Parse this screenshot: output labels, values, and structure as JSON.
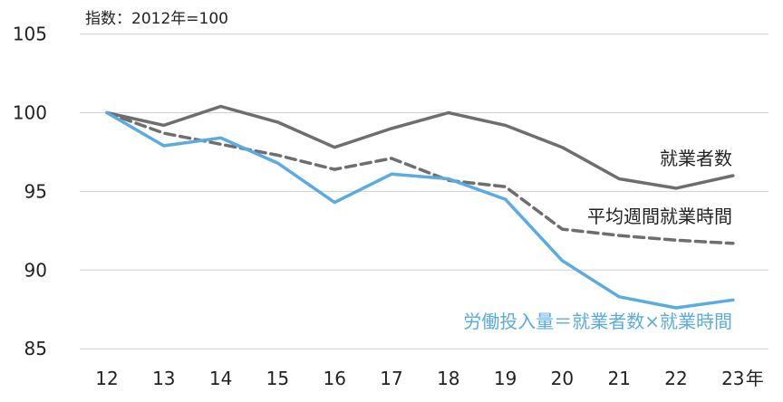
{
  "chart_data": {
    "type": "line",
    "title": "",
    "note": "指数：2012年=100",
    "xlabel": "",
    "ylabel": "",
    "x_unit": "年",
    "categories": [
      "12",
      "13",
      "14",
      "15",
      "16",
      "17",
      "18",
      "19",
      "20",
      "21",
      "22",
      "23"
    ],
    "yticks": [
      "85",
      "90",
      "95",
      "100",
      "105"
    ],
    "ylim": [
      85,
      105
    ],
    "grid": "horizontal",
    "series": [
      {
        "name": "就業者数",
        "color": "#6e6e6e",
        "style": "solid",
        "values": [
          100,
          99.2,
          100.4,
          99.4,
          97.8,
          99.0,
          100.0,
          99.2,
          97.8,
          95.8,
          95.2,
          96.0
        ]
      },
      {
        "name": "平均週間就業時間",
        "color": "#6e6e6e",
        "style": "dashed",
        "values": [
          100,
          98.7,
          98.0,
          97.3,
          96.4,
          97.1,
          95.7,
          95.3,
          92.6,
          92.2,
          91.9,
          91.7
        ]
      },
      {
        "name": "労働投入量＝就業者数×就業時間",
        "color": "#5aabdf",
        "style": "solid",
        "values": [
          100,
          97.9,
          98.4,
          96.8,
          94.3,
          96.1,
          95.8,
          94.5,
          90.6,
          88.3,
          87.6,
          88.1
        ]
      }
    ]
  }
}
